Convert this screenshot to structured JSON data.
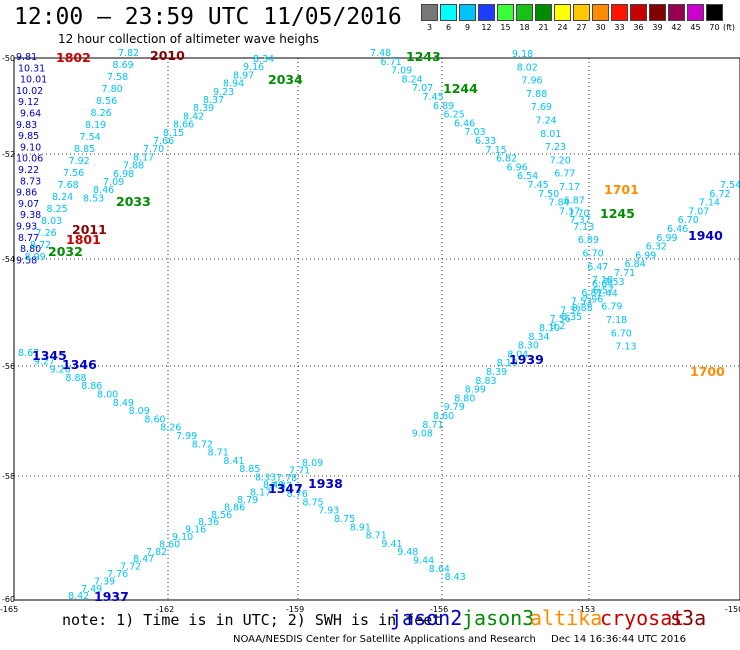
{
  "title": "12:00 — 23:59 UTC 11/05/2016",
  "subtitle": "12 hour collection of altimeter wave heighs",
  "scale": {
    "unit": "(ft)",
    "bins": [
      {
        "label": "3",
        "color": "#777777"
      },
      {
        "label": "6",
        "color": "#00ffff"
      },
      {
        "label": "9",
        "color": "#00c4f8"
      },
      {
        "label": "12",
        "color": "#1e3cff"
      },
      {
        "label": "15",
        "color": "#3cff3c"
      },
      {
        "label": "18",
        "color": "#18c018"
      },
      {
        "label": "21",
        "color": "#008c00"
      },
      {
        "label": "24",
        "color": "#ffff00"
      },
      {
        "label": "27",
        "color": "#ffc800"
      },
      {
        "label": "30",
        "color": "#ff8c00"
      },
      {
        "label": "33",
        "color": "#ff1400"
      },
      {
        "label": "36",
        "color": "#c80000"
      },
      {
        "label": "39",
        "color": "#820000"
      },
      {
        "label": "42",
        "color": "#960050"
      },
      {
        "label": "45",
        "color": "#cc00cc"
      },
      {
        "label": "70",
        "color": "#000000"
      }
    ]
  },
  "axes": {
    "x_ticks": [
      "-165",
      "-162",
      "-159",
      "-156",
      "-153",
      "-150"
    ],
    "y_ticks": [
      "-50",
      "-52",
      "-54",
      "-56",
      "-58",
      "-60"
    ]
  },
  "note": "note: 1) Time is in UTC; 2) SWH is in feet",
  "legend": [
    {
      "label": "jason2",
      "color": "#0000c8"
    },
    {
      "label": "jason3",
      "color": "#008c00"
    },
    {
      "label": "altika",
      "color": "#ff8c00"
    },
    {
      "label": "cryosat",
      "color": "#c80000"
    },
    {
      "label": "s3a",
      "color": "#8b0000"
    }
  ],
  "credit": "NOAA/NESDIS Center for Satellite Applications and Research",
  "timestamp": "Dec 14 16:36:44 UTC 2016",
  "time_labels": [
    {
      "text": "1802",
      "color": "#c80000"
    },
    {
      "text": "2010",
      "color": "#8b0000"
    },
    {
      "text": "2034",
      "color": "#008c00"
    },
    {
      "text": "1243",
      "color": "#008c00"
    },
    {
      "text": "1244",
      "color": "#008c00"
    },
    {
      "text": "2033",
      "color": "#008c00"
    },
    {
      "text": "2011",
      "color": "#8b0000"
    },
    {
      "text": "1801",
      "color": "#c80000"
    },
    {
      "text": "2032",
      "color": "#008c00"
    },
    {
      "text": "1701",
      "color": "#ff8c00"
    },
    {
      "text": "1245",
      "color": "#008c00"
    },
    {
      "text": "1940",
      "color": "#0000c8"
    },
    {
      "text": "1345",
      "color": "#0000c8"
    },
    {
      "text": "1346",
      "color": "#0000c8"
    },
    {
      "text": "1939",
      "color": "#0000c8"
    },
    {
      "text": "1700",
      "color": "#ff8c00"
    },
    {
      "text": "1347",
      "color": "#0000c8"
    },
    {
      "text": "1938",
      "color": "#0000c8"
    },
    {
      "text": "1937",
      "color": "#0000c8"
    }
  ],
  "tracks": [
    {
      "name": "jason2-west",
      "color": "#0000c8",
      "values": [
        "9.81",
        "10.31",
        "10.01",
        "10.02",
        "9.12",
        "9.64",
        "9.83",
        "9.85",
        "9.10",
        "10.06",
        "9.22",
        "8.73",
        "9.86",
        "9.07",
        "9.38",
        "9.93",
        "8.77",
        "8.80",
        "9.58"
      ]
    },
    {
      "name": "left-mix",
      "color": "#00c4f8",
      "values": [
        "7.82",
        "8.69",
        "7.58",
        "7.80",
        "8.56",
        "8.26",
        "8.19",
        "7.54",
        "8.85",
        "7.92",
        "7.56",
        "7.68",
        "8.24",
        "8.25",
        "8.03",
        "7.26",
        "8.72",
        "8.99"
      ]
    },
    {
      "name": "2034-track",
      "color": "#00c4f8",
      "values": [
        "8.34",
        "9.16",
        "8.97",
        "8.94",
        "9.23",
        "8.37",
        "8.39",
        "8.42",
        "8.66",
        "8.15",
        "7.66",
        "7.70",
        "8.17",
        "7.88",
        "6.98",
        "7.09",
        "8.46",
        "8.53"
      ]
    },
    {
      "name": "1244-track",
      "color": "#00c4f8",
      "values": [
        "7.48",
        "6.71",
        "7.09",
        "8.24",
        "7.07",
        "7.45",
        "6.89",
        "6.25",
        "6.46",
        "7.03",
        "6.33",
        "7.15",
        "6.82",
        "6.96",
        "6.54",
        "7.45",
        "7.50",
        "7.84",
        "7.17",
        "7.37"
      ]
    },
    {
      "name": "1701-track",
      "color": "#00c4f8",
      "values": [
        "9.18",
        "8.02",
        "7.96",
        "7.88",
        "7.69",
        "7.24",
        "8.01",
        "7.23",
        "7.20",
        "6.77",
        "7.17",
        "6.87",
        "7.70",
        "7.13",
        "6.89",
        "6.70",
        "6.47",
        "7.18",
        "7.44",
        "6.79",
        "7.18",
        "6.70",
        "7.13"
      ]
    },
    {
      "name": "1940-track",
      "color": "#00c4f8",
      "values": [
        "7.54",
        "6.72",
        "7.14",
        "7.07",
        "6.70",
        "6.46",
        "6.99",
        "6.32",
        "6.99",
        "6.84",
        "7.71",
        "7.53",
        "6.57",
        "7.96",
        "8.88",
        "8.35",
        "9.2"
      ]
    },
    {
      "name": "1939-track",
      "color": "#00c4f8",
      "values": [
        "6.64",
        "6.81",
        "7.53",
        "7.37",
        "7.56",
        "8.10",
        "8.34",
        "8.30",
        "8.04",
        "8.10",
        "8.39",
        "8.83",
        "8.99",
        "8.80",
        "9.79",
        "8.60",
        "8.71",
        "9.08"
      ]
    },
    {
      "name": "1345-track",
      "color": "#00c4f8",
      "values": [
        "8.67",
        "9.27",
        "9.26",
        "8.88",
        "8.86",
        "8.00",
        "8.49",
        "8.09",
        "8.60",
        "8.26",
        "7.99",
        "8.72",
        "8.71",
        "8.41",
        "8.85",
        "8.33",
        "7.87",
        "8.76",
        "8.75",
        "7.93",
        "8.75",
        "8.91",
        "8.71",
        "9.41",
        "9.48",
        "9.44",
        "8.64",
        "8.43"
      ]
    },
    {
      "name": "1938-track",
      "color": "#00c4f8",
      "values": [
        "8.09",
        "7.71",
        "7.78",
        "8.49",
        "8.17",
        "8.79",
        "8.86",
        "8.56",
        "8.36",
        "9.16",
        "9.10",
        "8.60",
        "7.82",
        "8.47",
        "7.72",
        "7.76",
        "7.39",
        "7.49",
        "8.42"
      ]
    }
  ]
}
